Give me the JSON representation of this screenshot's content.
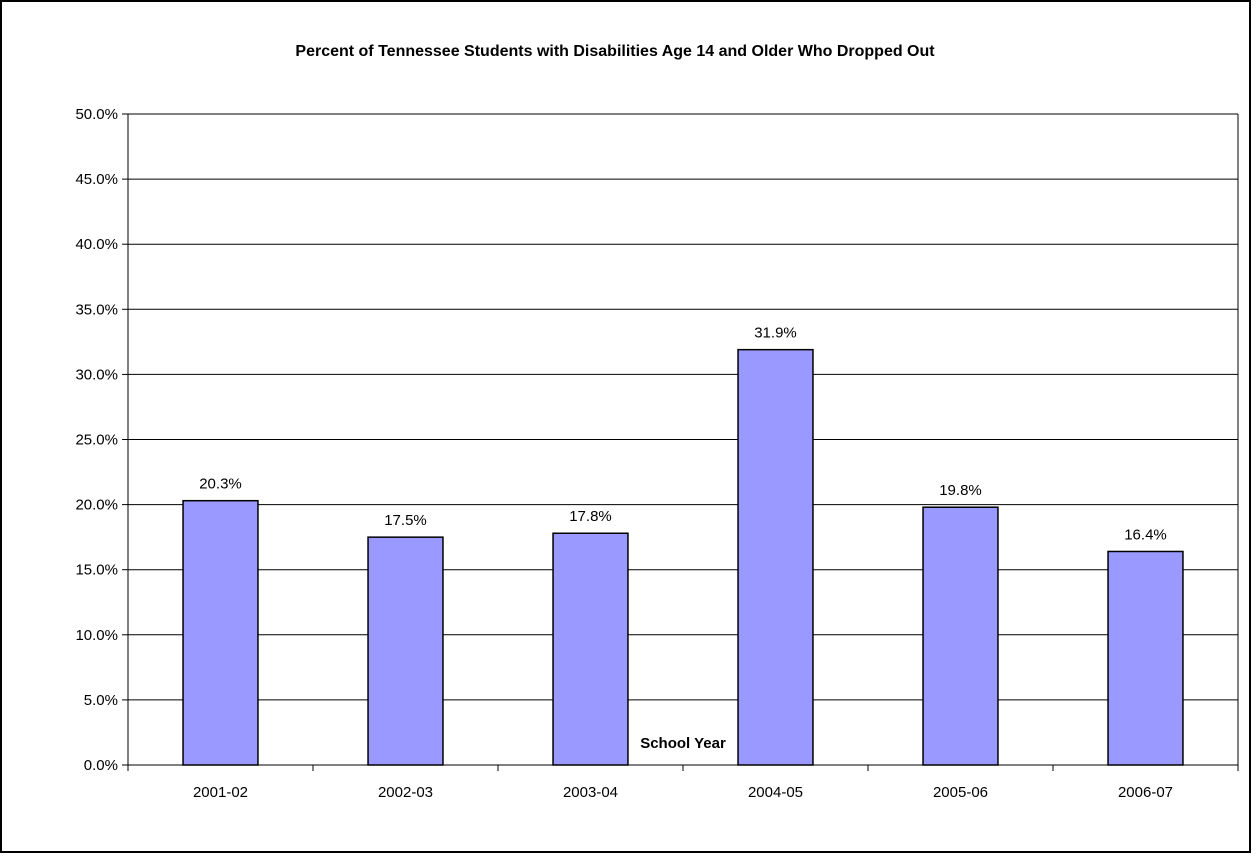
{
  "chart_data": {
    "type": "bar",
    "title": "Percent of Tennessee Students with Disabilities Age 14 and Older Who Dropped Out",
    "xlabel": "School Year",
    "ylabel": "",
    "categories": [
      "2001-02",
      "2002-03",
      "2003-04",
      "2004-05",
      "2005-06",
      "2006-07"
    ],
    "values": [
      20.3,
      17.5,
      17.8,
      31.9,
      19.8,
      16.4
    ],
    "value_labels": [
      "20.3%",
      "17.5%",
      "17.8%",
      "31.9%",
      "19.8%",
      "16.4%"
    ],
    "ylim": [
      0,
      50
    ],
    "ytick_step": 5,
    "ytick_labels": [
      "0.0%",
      "5.0%",
      "10.0%",
      "15.0%",
      "20.0%",
      "25.0%",
      "30.0%",
      "35.0%",
      "40.0%",
      "45.0%",
      "50.0%"
    ],
    "grid": true,
    "legend": "none",
    "bar_color": "#9999ff"
  }
}
